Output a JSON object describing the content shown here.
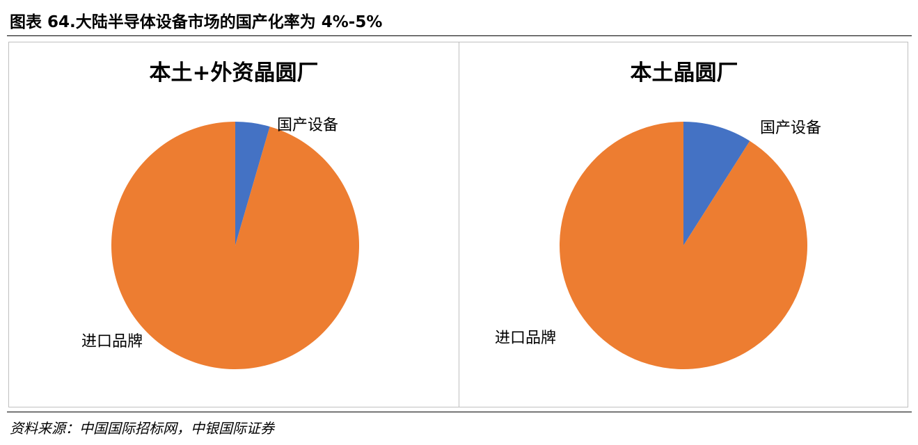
{
  "figure": {
    "title": "图表 64.大陆半导体设备市场的国产化率为 4%-5%",
    "source": "资料来源：中国国际招标网，中银国际证券"
  },
  "chart_data": [
    {
      "type": "pie",
      "title": "本土+外资晶圆厂",
      "categories": [
        "国产设备",
        "进口品牌"
      ],
      "values": [
        4.5,
        95.5
      ],
      "colors": [
        "#4472C4",
        "#ED7D31"
      ],
      "legend": "none"
    },
    {
      "type": "pie",
      "title": "本土晶圆厂",
      "categories": [
        "国产设备",
        "进口品牌"
      ],
      "values": [
        9,
        91
      ],
      "colors": [
        "#4472C4",
        "#ED7D31"
      ],
      "legend": "none"
    }
  ]
}
